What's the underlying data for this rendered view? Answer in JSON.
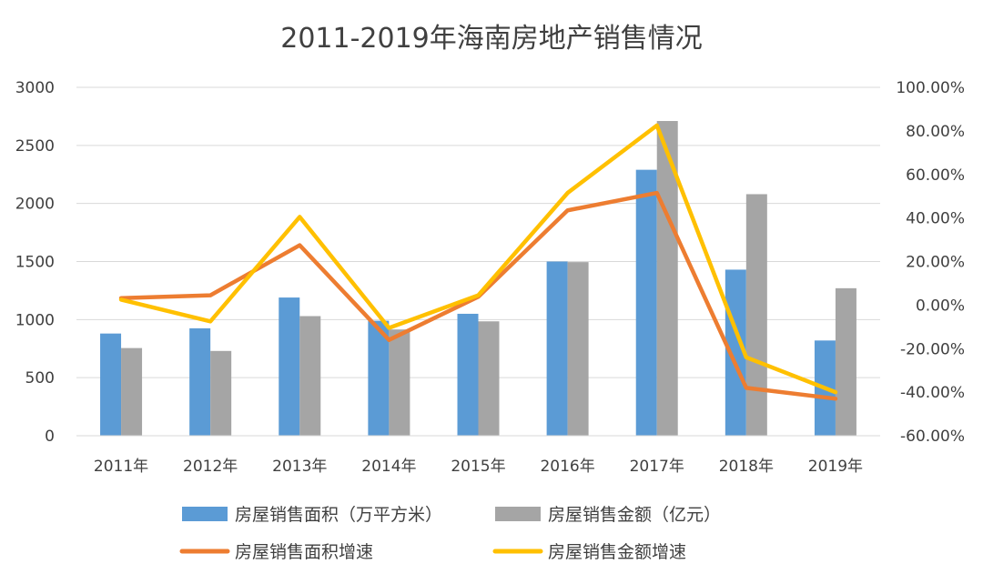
{
  "chart_data": {
    "type": "bar",
    "title": "2011-2019年海南房地产销售情况",
    "categories": [
      "2011年",
      "2012年",
      "2013年",
      "2014年",
      "2015年",
      "2016年",
      "2017年",
      "2018年",
      "2019年"
    ],
    "y_left": {
      "min": 0,
      "max": 3000,
      "ticks": [
        "0",
        "500",
        "1000",
        "1500",
        "2000",
        "2500",
        "3000"
      ]
    },
    "y_right": {
      "min": -60,
      "max": 100,
      "ticks": [
        "-60.00%",
        "-40.00%",
        "-20.00%",
        "0.00%",
        "20.00%",
        "40.00%",
        "60.00%",
        "80.00%",
        "100.00%"
      ]
    },
    "grid": true,
    "legend_position": "bottom",
    "series": [
      {
        "name": "房屋销售面积（万平方米）",
        "type": "bar",
        "axis": "left",
        "color": "#5B9BD5",
        "values": [
          880,
          925,
          1190,
          990,
          1050,
          1500,
          2290,
          1430,
          820
        ]
      },
      {
        "name": "房屋销售金额（亿元）",
        "type": "bar",
        "axis": "left",
        "color": "#A5A5A5",
        "values": [
          755,
          730,
          1030,
          915,
          985,
          1495,
          2710,
          2080,
          1270
        ]
      },
      {
        "name": "房屋销售面积增速",
        "type": "line",
        "axis": "right",
        "color": "#ED7D31",
        "values": [
          3.2,
          4.5,
          27.5,
          -16,
          3.8,
          43.5,
          51.5,
          -38,
          -43
        ]
      },
      {
        "name": "房屋销售金额增速",
        "type": "line",
        "axis": "right",
        "color": "#FFC000",
        "values": [
          2.5,
          -7.5,
          40.5,
          -10.5,
          4.5,
          51.5,
          82.5,
          -24,
          -40
        ]
      }
    ]
  }
}
